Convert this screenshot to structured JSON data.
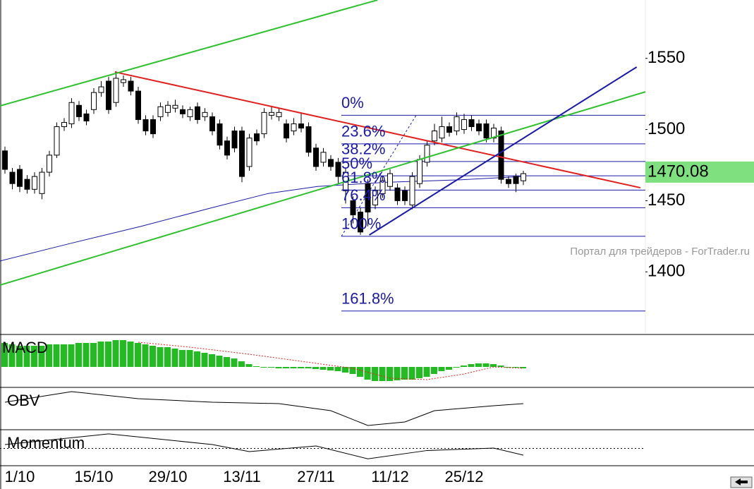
{
  "chart_data": [
    {
      "type": "candlestick",
      "categories": [
        null,
        null,
        "1/10",
        null,
        null,
        null,
        null,
        null,
        null,
        null,
        null,
        null,
        "15/10",
        null,
        null,
        null,
        null,
        null,
        null,
        null,
        null,
        null,
        "29/10",
        null,
        null,
        null,
        null,
        null,
        null,
        null,
        null,
        null,
        "13/11",
        null,
        null,
        null,
        null,
        null,
        null,
        null,
        null,
        null,
        "27/11",
        null,
        null,
        null,
        null,
        null,
        null,
        null,
        null,
        null,
        "11/12",
        null,
        null,
        null,
        null,
        null,
        null,
        null,
        null,
        null,
        "25/12",
        null,
        null,
        null,
        null,
        null,
        null,
        null,
        null
      ],
      "open": [
        1485,
        1470,
        1472,
        1465,
        1458,
        1455,
        1470,
        1482,
        1502,
        1504,
        1517,
        1511,
        1514,
        1526,
        1534,
        1519,
        1533,
        1534,
        1527,
        1507,
        1507,
        1509,
        1512,
        1515,
        1514,
        1509,
        1516,
        1509,
        1509,
        1504,
        1492,
        1499,
        1499,
        1474,
        1497,
        1497,
        1510,
        1509,
        1504,
        1499,
        1504,
        1502,
        1487,
        1477,
        1479,
        1477,
        1457,
        1450,
        1442,
        1462,
        1447,
        1455,
        1460,
        1459,
        1457,
        1447,
        1462,
        1477,
        1492,
        1494,
        1502,
        1499,
        1500,
        1507,
        1504,
        1504,
        1494,
        1499,
        1465,
        1467,
        1464
      ],
      "high": [
        1488,
        1473,
        1475,
        1468,
        1470,
        1473,
        1485,
        1505,
        1508,
        1522,
        1520,
        1514,
        1529,
        1534,
        1537,
        1541,
        1538,
        1537,
        1530,
        1510,
        1510,
        1519,
        1520,
        1521,
        1517,
        1516,
        1519,
        1515,
        1512,
        1507,
        1495,
        1502,
        1502,
        1497,
        1500,
        1515,
        1516,
        1515,
        1507,
        1508,
        1512,
        1505,
        1490,
        1487,
        1482,
        1480,
        1473,
        1453,
        1445,
        1465,
        1460,
        1467,
        1472,
        1462,
        1460,
        1470,
        1482,
        1492,
        1504,
        1509,
        1505,
        1512,
        1511,
        1510,
        1507,
        1507,
        1504,
        1502,
        1467,
        1469,
        1471
      ],
      "low": [
        1469,
        1458,
        1456,
        1455,
        1455,
        1451,
        1467,
        1480,
        1499,
        1501,
        1506,
        1503,
        1511,
        1523,
        1511,
        1516,
        1530,
        1524,
        1504,
        1496,
        1494,
        1506,
        1509,
        1512,
        1508,
        1506,
        1504,
        1506,
        1496,
        1486,
        1479,
        1484,
        1463,
        1471,
        1489,
        1494,
        1507,
        1506,
        1491,
        1496,
        1498,
        1481,
        1471,
        1474,
        1471,
        1462,
        1448,
        1434,
        1426,
        1432,
        1444,
        1452,
        1457,
        1447,
        1447,
        1444,
        1459,
        1474,
        1489,
        1491,
        1495,
        1496,
        1497,
        1499,
        1496,
        1491,
        1491,
        1462,
        1459,
        1456,
        1461
      ],
      "close": [
        1472,
        1462,
        1460,
        1458,
        1467,
        1470,
        1482,
        1502,
        1505,
        1519,
        1509,
        1506,
        1526,
        1530,
        1514,
        1536,
        1535,
        1527,
        1507,
        1499,
        1497,
        1516,
        1517,
        1517,
        1511,
        1514,
        1507,
        1512,
        1499,
        1489,
        1482,
        1487,
        1467,
        1494,
        1492,
        1512,
        1512,
        1512,
        1494,
        1504,
        1501,
        1484,
        1474,
        1484,
        1474,
        1467,
        1470,
        1440,
        1428,
        1442,
        1457,
        1464,
        1469,
        1450,
        1450,
        1467,
        1479,
        1489,
        1499,
        1502,
        1498,
        1509,
        1507,
        1502,
        1499,
        1494,
        1501,
        1465,
        1462,
        1462,
        1469
      ],
      "ylim": [
        1357,
        1591
      ],
      "yticks": [
        1550,
        1500,
        1450,
        1400
      ],
      "last_price": 1470.08,
      "watermark": "Портал для трейдеров - ForTrader.ru",
      "moving_average": {
        "color": "#1a1aa6",
        "x": [
          -0.67,
          8.86,
          18.38,
          27.9,
          35.5,
          42.2,
          51.7,
          61.2,
          69.8
        ],
        "values": [
          1407.6,
          1420,
          1432,
          1445,
          1455,
          1460,
          1463,
          1464.6,
          1467
        ]
      },
      "lines": [
        {
          "color": "#e02020",
          "x": [
            14.86,
            85.8
          ],
          "values": [
            1540.4,
            1459.1
          ]
        },
        {
          "color": "#30c030",
          "x": [
            -0.67,
            50.3
          ],
          "values": [
            1516.6,
            1591
          ]
        },
        {
          "color": "#30c030",
          "x": [
            -0.67,
            86.5
          ],
          "values": [
            1390.7,
            1526.5
          ]
        },
        {
          "color": "#1a1aa6",
          "x": [
            49.2,
            85.3
          ],
          "values": [
            1425.9,
            1543.9
          ]
        }
      ],
      "fibonacci": {
        "color": "#1a1aa6",
        "high": 1510,
        "low": 1425,
        "levels": [
          {
            "value": 0,
            "label": "0%"
          },
          {
            "value": 23.6,
            "label": "23.6%"
          },
          {
            "value": 38.2,
            "label": "38.2%"
          },
          {
            "value": 50,
            "label": "50%"
          },
          {
            "value": 61.8,
            "label": "61.8%"
          },
          {
            "value": 76.4,
            "label": "76.4%"
          },
          {
            "value": 100,
            "label": "100%"
          },
          {
            "value": 161.8,
            "label": "161.8%"
          }
        ]
      }
    },
    {
      "type": "macd",
      "title": "MACD",
      "color": "#22bb22",
      "values": [
        17,
        16,
        15,
        15,
        15,
        15,
        16,
        16,
        16,
        16,
        17,
        17,
        17,
        18,
        18,
        19,
        19,
        18,
        17,
        16,
        15,
        14,
        14,
        13,
        12,
        12,
        11,
        10,
        9,
        8,
        7,
        6,
        4,
        2,
        0.5,
        -0.5,
        0,
        -1,
        -1,
        -1,
        -1,
        -1,
        -1.5,
        -2,
        -2.5,
        -3,
        -4,
        -5,
        -7,
        -9,
        -10,
        -10,
        -10,
        -9.5,
        -9,
        -9,
        -8,
        -7,
        -5,
        -3,
        -2,
        0,
        1,
        2,
        2.5,
        2.5,
        2,
        1,
        0,
        0,
        -1
      ],
      "signal": {
        "color": "#e02020",
        "x": [
          18,
          25,
          33,
          40,
          47,
          52,
          57,
          62,
          66,
          70
        ],
        "values": [
          17.5,
          14,
          9,
          4,
          -1,
          -8,
          -9,
          -5,
          0,
          -1
        ]
      },
      "ylim": [
        -14,
        22
      ]
    },
    {
      "type": "line",
      "title": "OBV",
      "x": [
        0,
        9,
        18,
        28,
        37,
        44,
        49,
        54,
        58,
        66,
        70
      ],
      "values": [
        66.7,
        93,
        75.4,
        66.7,
        63.2,
        45.6,
        8.8,
        17.5,
        45.6,
        57.9,
        63.2
      ],
      "ylim": [
        0,
        100
      ]
    },
    {
      "type": "line",
      "title": "Momentum",
      "x": [
        0,
        14,
        28,
        33,
        42,
        49,
        57,
        66,
        70
      ],
      "values": [
        100.56,
        102.1,
        100.56,
        99.54,
        100.36,
        98.5,
        99.7,
        100.05,
        99.03
      ],
      "ylim": [
        97.5,
        102.5
      ],
      "reference": 100
    }
  ]
}
